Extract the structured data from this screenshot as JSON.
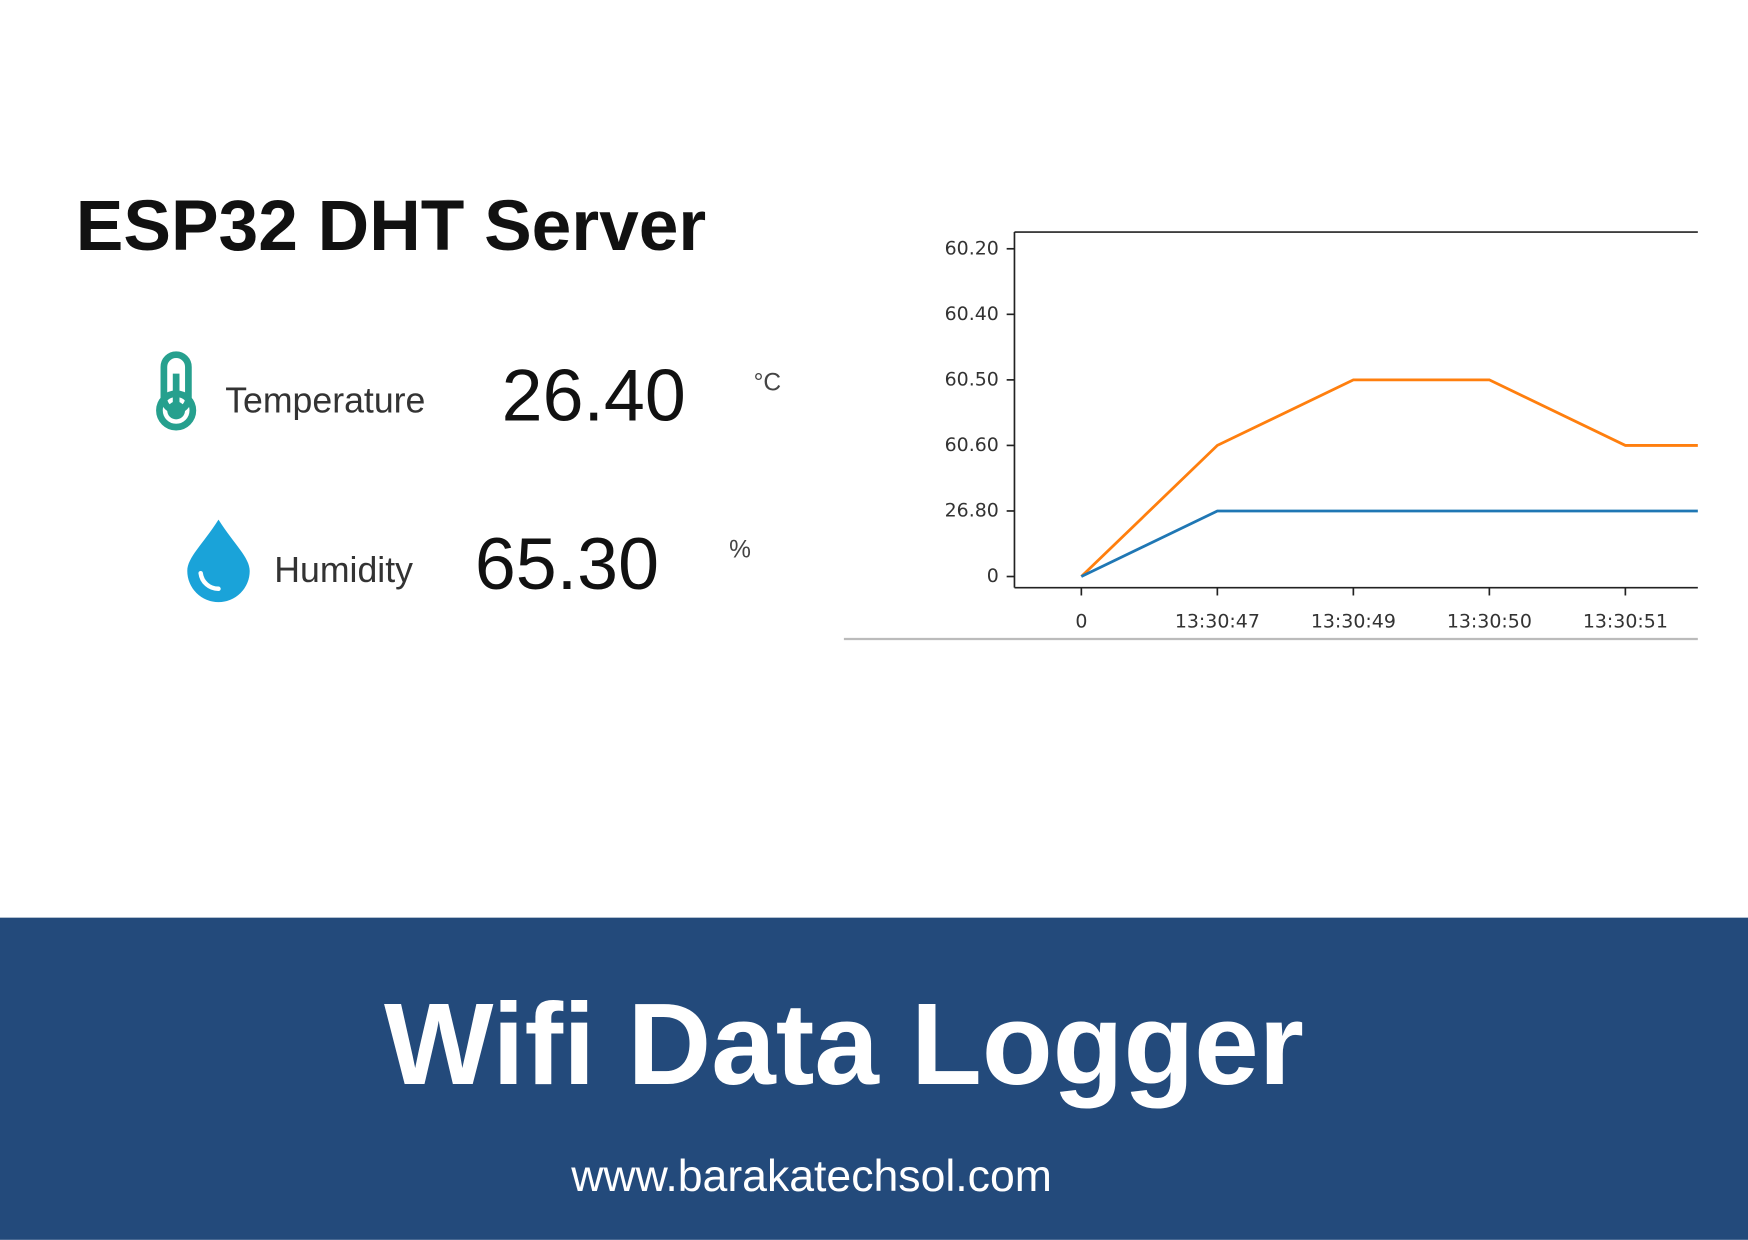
{
  "header": {
    "title": "ESP32 DHT Server"
  },
  "readings": [
    {
      "label": "Temperature",
      "value": "26.40",
      "unit": "°C"
    },
    {
      "label": "Humidity",
      "value": "65.30",
      "unit": "%"
    }
  ],
  "chart_data": {
    "type": "line",
    "categories": [
      "0",
      "13:30:47",
      "13:30:49",
      "13:30:50",
      "13:30:51",
      null
    ],
    "y_categories": [
      "0",
      "26.80",
      "60.60",
      "60.50",
      "60.40",
      "60.20"
    ],
    "series": [
      {
        "color": "#ff7f0e",
        "values": [
          "0",
          "60.60",
          "60.50",
          "60.50",
          "60.60",
          "60.60"
        ]
      },
      {
        "color": "#1f77b4",
        "values": [
          "0",
          "26.80",
          "26.80",
          "26.80",
          "26.80",
          "26.80"
        ]
      }
    ]
  },
  "banner": {
    "title": "Wifi Data Logger",
    "url": "www.barakatechsol.com"
  }
}
